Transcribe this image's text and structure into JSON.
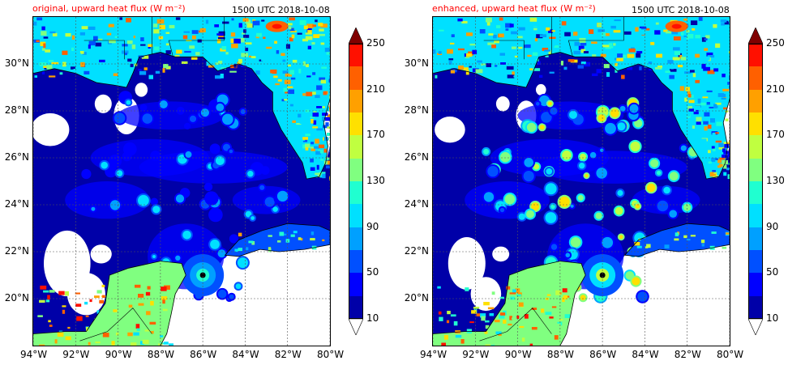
{
  "panels": [
    {
      "id": "left",
      "title": "original, upward heat flux (W m⁻²)",
      "timestamp": "1500 UTC 2018-10-08"
    },
    {
      "id": "right",
      "title": "enhanced, upward heat flux (W m⁻²)",
      "timestamp": "1500 UTC 2018-10-08"
    }
  ],
  "colors": {
    "title": "#ff0000",
    "ocean_base": "#0000b4",
    "land_warm": "#00c8ff",
    "eye": "#000000"
  },
  "map": {
    "lat_ticks": [
      "30°N",
      "28°N",
      "26°N",
      "24°N",
      "22°N",
      "20°N"
    ],
    "lon_ticks": [
      "94°W",
      "92°W",
      "90°W",
      "88°W",
      "86°W",
      "84°W",
      "82°W",
      "80°W"
    ],
    "lat_values": [
      30,
      28,
      26,
      24,
      22,
      20
    ],
    "lon_values": [
      -94,
      -92,
      -90,
      -88,
      -86,
      -84,
      -82,
      -80
    ],
    "extent": {
      "lon_min": -94,
      "lon_max": -80,
      "lat_min": 18.0,
      "lat_max": 32.0
    },
    "grid": "dashed"
  },
  "colorbar": {
    "levels": [
      10,
      30,
      50,
      70,
      90,
      110,
      130,
      150,
      170,
      190,
      210,
      230,
      250
    ],
    "tick_labels": [
      "250",
      "210",
      "170",
      "130",
      "90",
      "50",
      "10"
    ],
    "colors": [
      "#0000a8",
      "#0000ff",
      "#0050ff",
      "#00a0ff",
      "#00e0ff",
      "#20ffd0",
      "#80ff80",
      "#c0ff40",
      "#ffe000",
      "#ffa000",
      "#ff6000",
      "#ff1000"
    ],
    "over_color": "#800000",
    "under_color": "#ffffff",
    "extend": "both"
  }
}
